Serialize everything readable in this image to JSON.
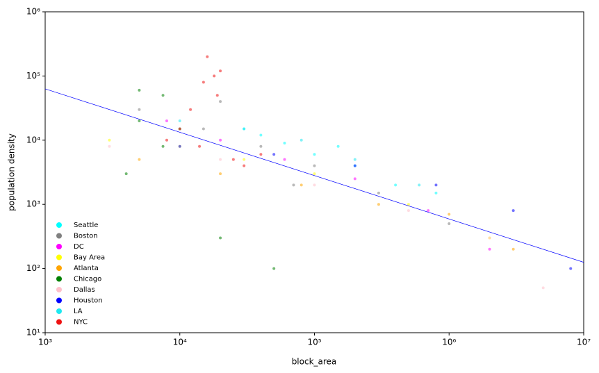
{
  "chart_data": {
    "type": "scatter",
    "xlabel": "block_area",
    "ylabel": "population density",
    "xscale": "log",
    "yscale": "log",
    "xlim": [
      1000,
      10000000
    ],
    "ylim": [
      10,
      1000000
    ],
    "xticks": [
      {
        "value": 1000,
        "label": "10³"
      },
      {
        "value": 10000,
        "label": "10⁴"
      },
      {
        "value": 100000,
        "label": "10⁵"
      },
      {
        "value": 1000000,
        "label": "10⁶"
      },
      {
        "value": 10000000,
        "label": "10⁷"
      }
    ],
    "yticks": [
      {
        "value": 10,
        "label": "10¹"
      },
      {
        "value": 100,
        "label": "10²"
      },
      {
        "value": 1000,
        "label": "10³"
      },
      {
        "value": 10000,
        "label": "10⁴"
      },
      {
        "value": 100000,
        "label": "10⁵"
      },
      {
        "value": 1000000,
        "label": "10⁶"
      }
    ],
    "legend": "lower left",
    "series": [
      {
        "name": "Seattle",
        "color": "#00ffff",
        "x": [
          30000,
          60000,
          100000,
          200000,
          400000,
          40000,
          150000,
          800000
        ],
        "values": [
          15000,
          9000,
          6000,
          4000,
          2000,
          12000,
          8000,
          1500
        ]
      },
      {
        "name": "Boston",
        "color": "#808080",
        "x": [
          5000,
          15000,
          40000,
          100000,
          300000,
          1000000,
          20000,
          70000
        ],
        "values": [
          30000,
          15000,
          8000,
          4000,
          1500,
          500,
          40000,
          2000
        ]
      },
      {
        "name": "DC",
        "color": "#ff00ff",
        "x": [
          8000,
          20000,
          60000,
          200000,
          700000,
          2000000
        ],
        "values": [
          20000,
          10000,
          5000,
          2500,
          800,
          200
        ]
      },
      {
        "name": "Bay Area",
        "color": "#ffff00",
        "x": [
          3000,
          10000,
          30000,
          100000,
          500000,
          2000000
        ],
        "values": [
          10000,
          8000,
          5000,
          3000,
          1000,
          300
        ]
      },
      {
        "name": "Atlanta",
        "color": "#ffa500",
        "x": [
          5000,
          20000,
          80000,
          300000,
          1000000,
          3000000
        ],
        "values": [
          5000,
          3000,
          2000,
          1000,
          700,
          200
        ]
      },
      {
        "name": "Chicago",
        "color": "#008000",
        "x": [
          5000,
          5000,
          7500,
          7500,
          10000,
          4000,
          20000,
          50000
        ],
        "values": [
          60000,
          20000,
          50000,
          8000,
          15000,
          3000,
          300,
          100
        ]
      },
      {
        "name": "Dallas",
        "color": "#ffc0cb",
        "x": [
          3000,
          20000,
          100000,
          500000,
          2000000,
          5000000
        ],
        "values": [
          8000,
          5000,
          2000,
          800,
          300,
          50
        ]
      },
      {
        "name": "Houston",
        "color": "#0000ff",
        "x": [
          10000,
          50000,
          200000,
          800000,
          3000000,
          8000000
        ],
        "values": [
          8000,
          6000,
          4000,
          2000,
          800,
          100
        ]
      },
      {
        "name": "LA",
        "color": "#1ee8f0",
        "x": [
          10000,
          30000,
          80000,
          200000,
          600000
        ],
        "values": [
          20000,
          15000,
          10000,
          5000,
          2000
        ]
      },
      {
        "name": "NYC",
        "color": "#ee1111",
        "x": [
          10000,
          12000,
          15000,
          18000,
          20000,
          14000,
          25000,
          40000,
          16000,
          19000,
          8000,
          30000
        ],
        "values": [
          15000,
          30000,
          80000,
          100000,
          120000,
          8000,
          5000,
          6000,
          200000,
          50000,
          10000,
          4000
        ]
      }
    ],
    "fit_line": {
      "color": "#0000ff",
      "x": [
        1000,
        10000000
      ],
      "y": [
        63000,
        125
      ]
    }
  }
}
